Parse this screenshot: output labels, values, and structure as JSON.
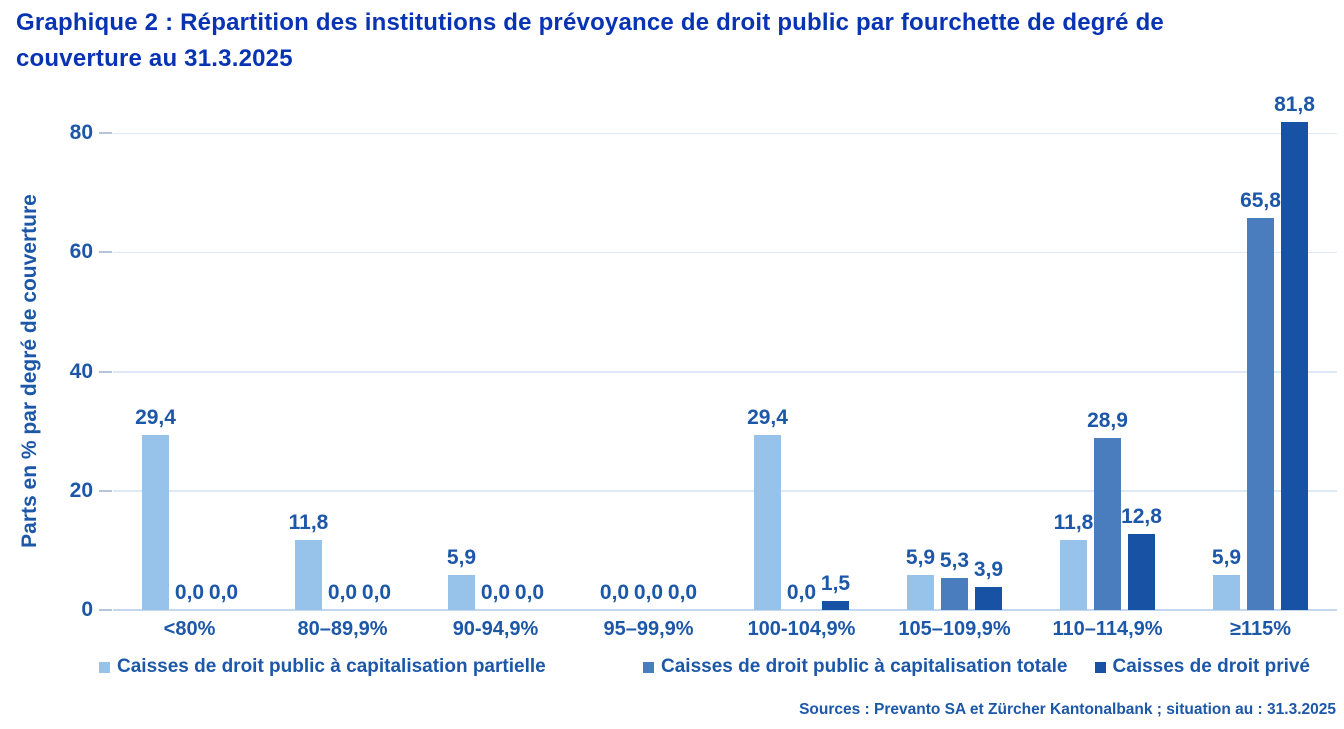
{
  "title": "Graphique 2 : Répartition des institutions de prévoyance de droit public par fourchette de degré de couverture au 31.3.2025",
  "source_note": "Sources : Prevanto SA et Zürcher Kantonalbank ; situation au : 31.3.2025",
  "colors": {
    "title_blue": "#0834b4",
    "text_blue": "#1d57a8",
    "gridline": "#dde9f6",
    "baseline": "#c3d8ee",
    "tick": "#b5c6da"
  },
  "chart_data": {
    "type": "bar",
    "title": "Graphique 2 : Répartition des institutions de prévoyance de droit public par fourchette de degré de couverture au 31.3.2025",
    "xlabel": "",
    "ylabel": "Parts en % par degré de couverture",
    "ylim": [
      0,
      87
    ],
    "yticks": [
      0,
      20,
      40,
      60,
      80
    ],
    "grid": true,
    "legend_position": "bottom",
    "decimal_separator": ",",
    "categories": [
      "<80%",
      "80–89,9%",
      "90-94,9%",
      "95–99,9%",
      "100-104,9%",
      "105–109,9%",
      "110–114,9%",
      "≥115%"
    ],
    "series": [
      {
        "name": "Caisses de droit public à capitalisation partielle",
        "color": "#97c3ea",
        "values": [
          29.4,
          11.8,
          5.9,
          0.0,
          29.4,
          5.9,
          11.8,
          5.9
        ]
      },
      {
        "name": "Caisses de droit public à capitalisation totale",
        "color": "#497dbe",
        "values": [
          0.0,
          0.0,
          0.0,
          0.0,
          0.0,
          5.3,
          28.9,
          65.8
        ]
      },
      {
        "name": "Caisses de droit privé",
        "color": "#1852a5",
        "values": [
          0.0,
          0.0,
          0.0,
          0.0,
          1.5,
          3.9,
          12.8,
          81.8
        ]
      }
    ]
  }
}
